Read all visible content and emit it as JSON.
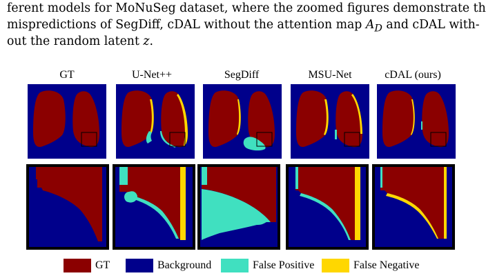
{
  "caption": {
    "lines": [
      "ferent models for MoNuSeg dataset, where the zoomed figures demonstrate the",
      "mispredictions of SegDiff, cDAL without the attention map ",
      "out the random latent "
    ],
    "line2_math": "A",
    "line2_math_sub": "D",
    "line2_tail": " and cDAL with-",
    "line3_math": "z",
    "line3_tail": "."
  },
  "columns": [
    "GT",
    "U-Net++",
    "SegDiff",
    "MSU-Net",
    "cDAL (ours)"
  ],
  "legend": [
    {
      "label": "GT",
      "color": "#8b0000"
    },
    {
      "label": "Background",
      "color": "#00008b"
    },
    {
      "label": "False Positive",
      "color": "#40e0c0"
    },
    {
      "label": "False Negative",
      "color": "#ffd700"
    }
  ],
  "colors": {
    "background": "#00008b",
    "gt": "#8b0000",
    "false_positive": "#40e0c0",
    "false_negative": "#ffd700",
    "zoom_box": "#000000"
  }
}
